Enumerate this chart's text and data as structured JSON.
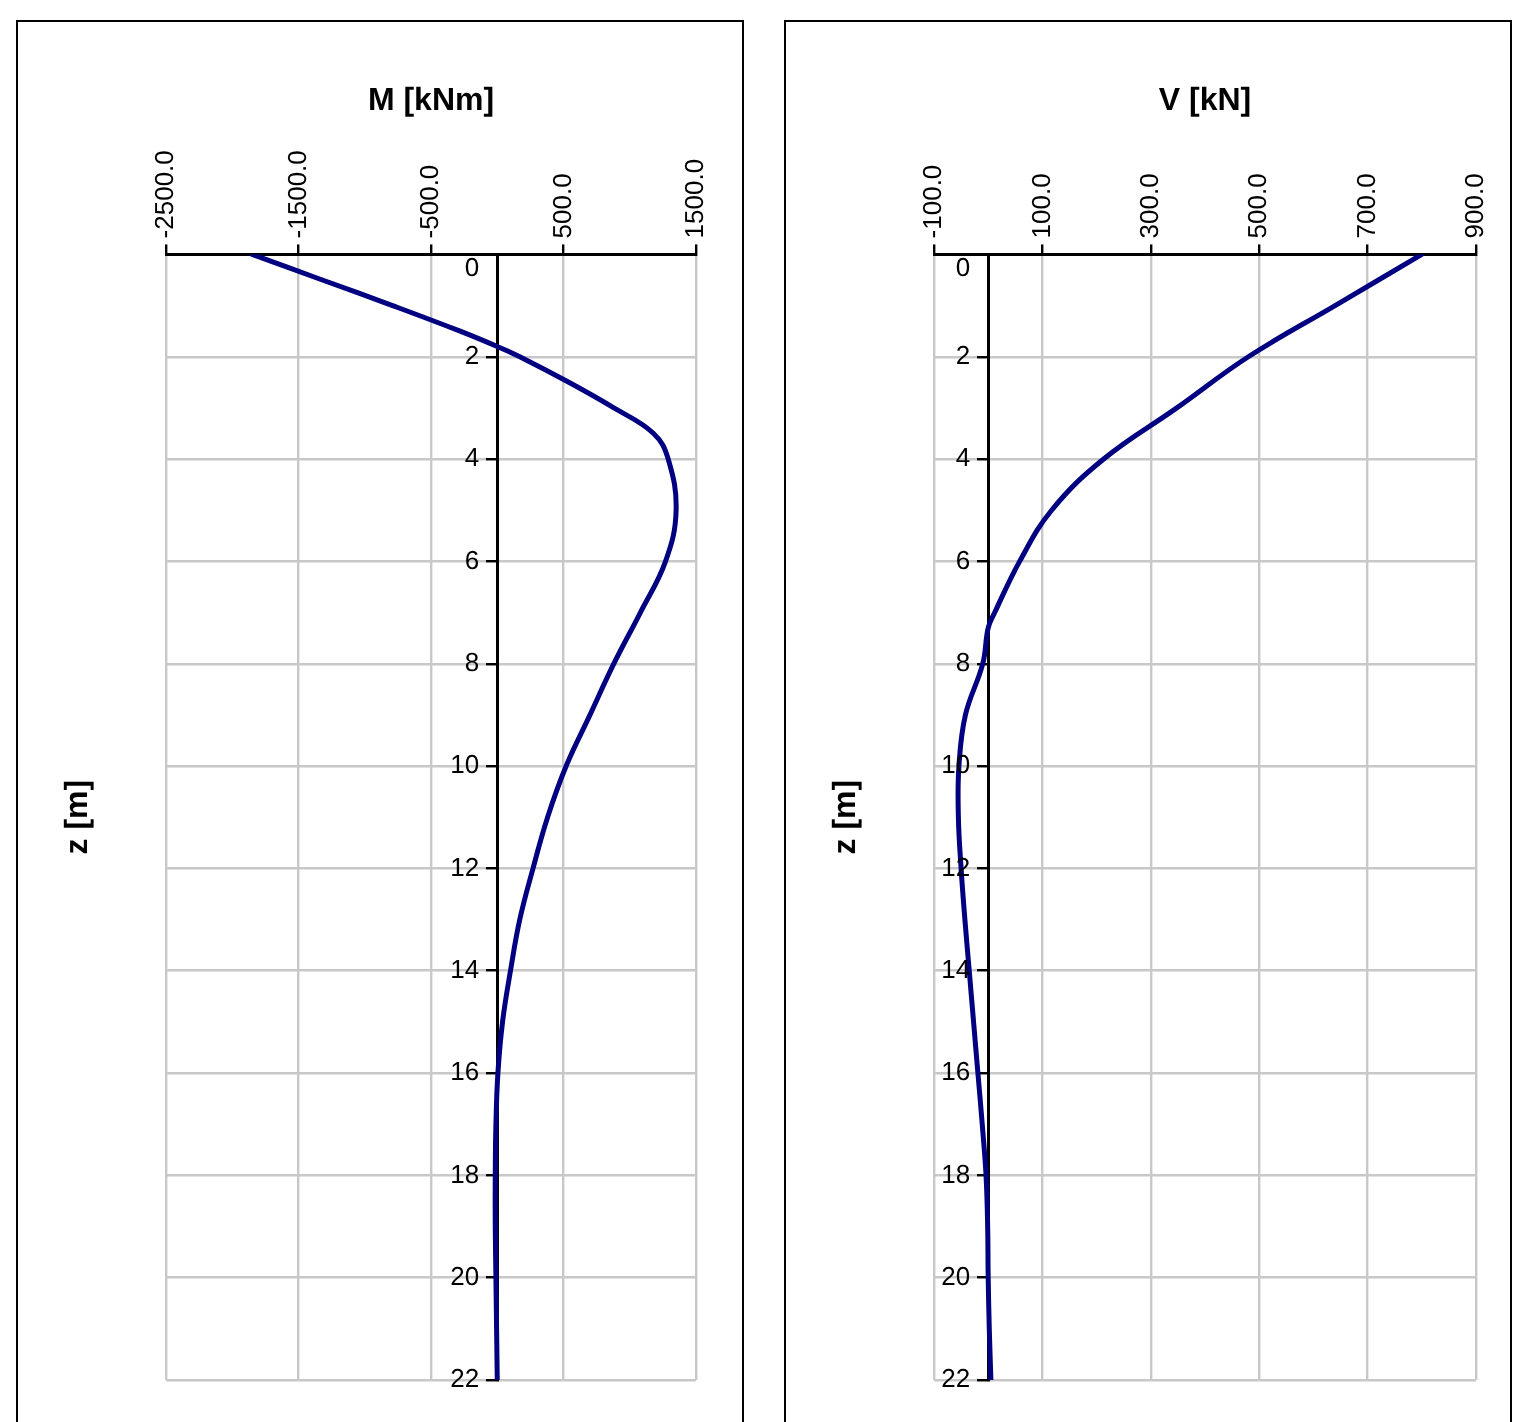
{
  "chart_data": [
    {
      "type": "line",
      "title": "M [kNm]",
      "ylabel": "z [m]",
      "orientation": "horizontal",
      "marker": "none",
      "line_style": "solid",
      "grid": true,
      "legend": false,
      "x": [
        0,
        0.5,
        1,
        1.5,
        1.8,
        2,
        2.5,
        3,
        3.5,
        4,
        5,
        6,
        7,
        8,
        9,
        10,
        11,
        12,
        13,
        14,
        15,
        16,
        17,
        18,
        19,
        20,
        21,
        22
      ],
      "series": [
        {
          "color": "#000080",
          "values": [
            -1850,
            -1320,
            -790,
            -280,
            0,
            170,
            540,
            880,
            1180,
            1290,
            1350,
            1270,
            1080,
            880,
            700,
            520,
            380,
            270,
            170,
            100,
            40,
            5,
            -10,
            -15,
            -15,
            -10,
            -5,
            0
          ]
        }
      ],
      "xlim": [
        -2500,
        1500
      ],
      "xticks": [
        {
          "value": -2500,
          "label": "-2500.0"
        },
        {
          "value": -1500,
          "label": "-1500.0"
        },
        {
          "value": -500,
          "label": "-500.0"
        },
        {
          "value": 500,
          "label": "500.0"
        },
        {
          "value": 1500,
          "label": "1500.0"
        }
      ],
      "ylim": [
        22,
        0
      ],
      "yticks": [
        0,
        2,
        4,
        6,
        8,
        10,
        12,
        14,
        16,
        18,
        20,
        22
      ]
    },
    {
      "type": "line",
      "title": "V [kN]",
      "ylabel": "z [m]",
      "orientation": "horizontal",
      "marker": "none",
      "line_style": "solid",
      "grid": true,
      "legend": false,
      "x": [
        0,
        1,
        2,
        3,
        4,
        5,
        6,
        7,
        7.3,
        8,
        9,
        10,
        11,
        12,
        13,
        14,
        15,
        16,
        17,
        18,
        19,
        20,
        21,
        22
      ],
      "series": [
        {
          "color": "#000080",
          "values": [
            800,
            640,
            480,
            348,
            213,
            117,
            58,
            12,
            0,
            -10,
            -42,
            -54,
            -55,
            -50,
            -43,
            -35,
            -27,
            -19,
            -11,
            -4,
            -1,
            0,
            2,
            5
          ]
        }
      ],
      "xlim": [
        -100,
        900
      ],
      "xticks": [
        {
          "value": -100,
          "label": "-100.0"
        },
        {
          "value": 100,
          "label": "100.0"
        },
        {
          "value": 300,
          "label": "300.0"
        },
        {
          "value": 500,
          "label": "500.0"
        },
        {
          "value": 700,
          "label": "700.0"
        },
        {
          "value": 900,
          "label": "900.0"
        }
      ],
      "ylim": [
        22,
        0
      ],
      "yticks": [
        0,
        2,
        4,
        6,
        8,
        10,
        12,
        14,
        16,
        18,
        20,
        22
      ]
    }
  ]
}
